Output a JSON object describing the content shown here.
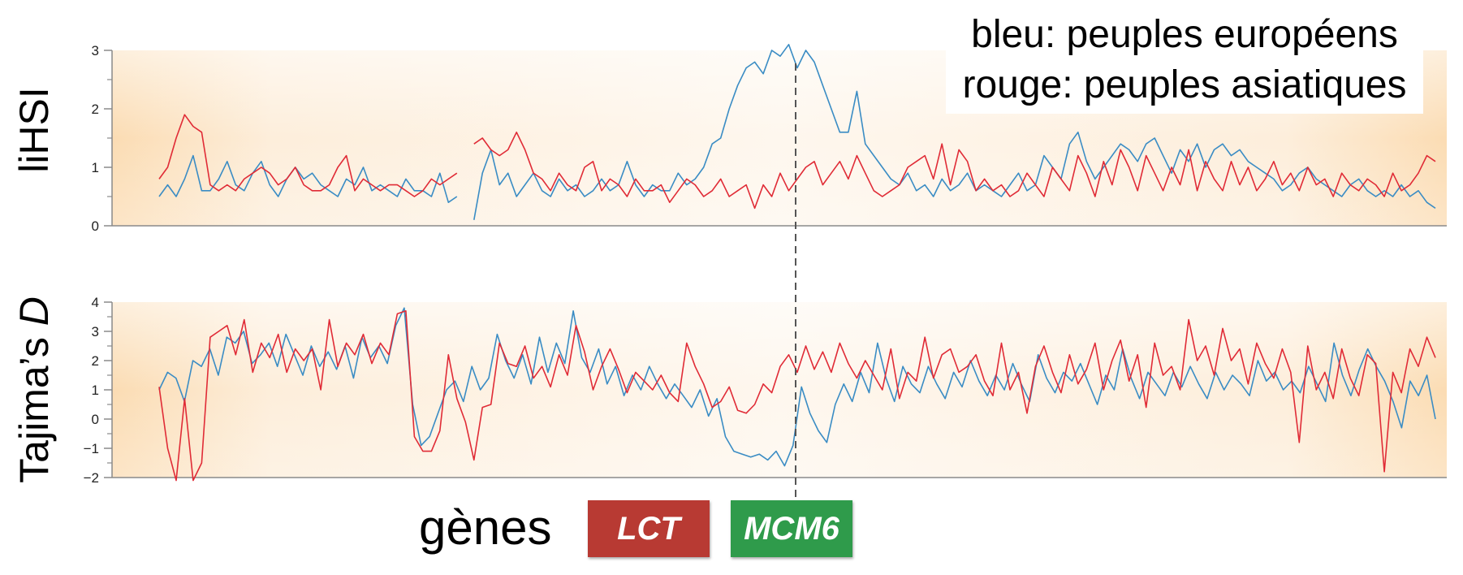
{
  "legend": {
    "line1": "bleu: peuples européens",
    "line2": "rouge: peuples asiatiques"
  },
  "colors": {
    "blue": "#3a8cc4",
    "red": "#e02b36",
    "lct": "#b83a33",
    "mcm6": "#2f9b4b"
  },
  "genes": {
    "label": "gènes",
    "lct": "LCT",
    "mcm6": "MCM6"
  },
  "chart_data": [
    {
      "type": "line",
      "ylabel": "liHSI",
      "ylim": [
        0,
        3
      ],
      "yticks": [
        "0",
        "1",
        "2",
        "3"
      ],
      "grid": false,
      "series": [
        {
          "name": "bleu: peuples européens",
          "color": "#3a8cc4",
          "values": [
            0.5,
            0.7,
            0.5,
            0.8,
            1.2,
            0.6,
            0.6,
            0.8,
            1.1,
            0.7,
            0.6,
            0.9,
            1.1,
            0.7,
            0.5,
            0.8,
            1.0,
            0.8,
            0.9,
            0.7,
            0.6,
            0.5,
            0.8,
            0.7,
            1.0,
            0.6,
            0.7,
            0.6,
            0.5,
            0.8,
            0.6,
            0.6,
            0.5,
            0.9,
            0.4,
            0.5,
            null,
            0.1,
            0.9,
            1.3,
            0.7,
            0.9,
            0.5,
            0.7,
            0.9,
            0.6,
            0.5,
            0.8,
            0.6,
            0.7,
            0.5,
            0.6,
            0.8,
            0.6,
            0.7,
            1.1,
            0.7,
            0.5,
            0.7,
            0.6,
            0.6,
            0.9,
            0.7,
            0.8,
            1.0,
            1.4,
            1.5,
            2.0,
            2.4,
            2.7,
            2.8,
            2.6,
            3.0,
            2.9,
            3.1,
            2.7,
            3.0,
            2.8,
            2.4,
            2.0,
            1.6,
            1.6,
            2.3,
            1.4,
            1.2,
            1.0,
            0.8,
            0.7,
            0.9,
            0.6,
            0.7,
            0.5,
            0.8,
            0.6,
            0.7,
            0.9,
            0.6,
            0.7,
            0.6,
            0.5,
            0.7,
            0.9,
            0.6,
            0.7,
            1.2,
            1.0,
            0.8,
            1.4,
            1.6,
            1.1,
            0.8,
            1.0,
            1.2,
            1.4,
            1.3,
            1.1,
            1.4,
            1.5,
            1.2,
            0.9,
            1.3,
            1.1,
            1.4,
            1.0,
            1.3,
            1.4,
            1.2,
            1.3,
            1.1,
            1.0,
            0.9,
            0.8,
            0.6,
            0.7,
            0.9,
            1.0,
            0.8,
            0.7,
            0.6,
            0.5,
            0.7,
            0.8,
            0.6,
            0.5,
            0.6,
            0.5,
            0.7,
            0.5,
            0.6,
            0.4,
            0.3
          ]
        },
        {
          "name": "rouge: peuples asiatiques",
          "color": "#e02b36",
          "values": [
            0.8,
            1.0,
            1.5,
            1.9,
            1.7,
            1.6,
            0.7,
            0.6,
            0.7,
            0.6,
            0.8,
            0.9,
            1.0,
            0.9,
            0.7,
            0.8,
            1.0,
            0.7,
            0.6,
            0.6,
            0.7,
            1.0,
            1.2,
            0.6,
            0.8,
            0.7,
            0.6,
            0.7,
            0.7,
            0.6,
            0.5,
            0.6,
            0.8,
            0.7,
            0.8,
            0.9,
            null,
            1.4,
            1.5,
            1.3,
            1.2,
            1.3,
            1.6,
            1.3,
            0.9,
            0.8,
            0.6,
            0.9,
            0.7,
            0.6,
            1.0,
            1.1,
            0.6,
            0.8,
            0.7,
            0.5,
            0.8,
            0.6,
            0.6,
            0.7,
            0.4,
            0.6,
            0.8,
            0.7,
            0.5,
            0.6,
            0.8,
            0.5,
            0.6,
            0.7,
            0.3,
            0.7,
            0.5,
            0.9,
            0.6,
            0.8,
            1.0,
            1.1,
            0.7,
            0.9,
            1.1,
            0.8,
            1.2,
            0.9,
            0.6,
            0.5,
            0.6,
            0.7,
            1.0,
            1.1,
            1.2,
            0.8,
            1.4,
            0.7,
            1.3,
            1.1,
            0.6,
            0.8,
            0.6,
            0.7,
            0.5,
            0.6,
            0.9,
            0.7,
            0.5,
            1.0,
            0.8,
            0.6,
            1.2,
            0.9,
            0.5,
            1.1,
            0.7,
            1.3,
            1.0,
            0.6,
            1.2,
            0.9,
            0.6,
            1.0,
            0.7,
            1.3,
            0.6,
            1.1,
            0.8,
            0.6,
            1.1,
            0.7,
            1.0,
            0.6,
            0.8,
            1.1,
            0.7,
            0.9,
            0.6,
            1.0,
            0.7,
            0.8,
            0.5,
            0.9,
            0.7,
            0.6,
            0.8,
            0.7,
            0.5,
            0.9,
            0.6,
            0.7,
            0.9,
            1.2,
            1.1
          ]
        }
      ]
    },
    {
      "type": "line",
      "ylabel": "Tajima’s D",
      "ylim": [
        -2,
        4
      ],
      "yticks": [
        "−2",
        "−1",
        "0",
        "1",
        "2",
        "3",
        "4"
      ],
      "grid": false,
      "series": [
        {
          "name": "bleu: peuples européens",
          "color": "#3a8cc4",
          "values": [
            1.0,
            1.6,
            1.4,
            0.6,
            2.0,
            1.8,
            2.4,
            1.5,
            2.8,
            2.6,
            3.0,
            1.9,
            2.2,
            2.6,
            1.8,
            2.9,
            2.2,
            1.5,
            2.5,
            1.8,
            2.3,
            1.7,
            2.5,
            1.4,
            2.8,
            2.1,
            2.5,
            1.9,
            3.2,
            3.8,
            0.5,
            -0.9,
            -0.6,
            0.2,
            1.0,
            1.3,
            0.6,
            1.8,
            1.0,
            1.4,
            2.9,
            2.0,
            1.4,
            2.2,
            1.2,
            2.8,
            1.6,
            2.6,
            1.9,
            3.7,
            2.1,
            1.6,
            2.4,
            1.2,
            1.8,
            0.8,
            1.5,
            1.0,
            1.8,
            1.2,
            0.7,
            1.2,
            0.8,
            0.4,
            1.0,
            0.1,
            0.7,
            -0.6,
            -1.1,
            -1.2,
            -1.3,
            -1.2,
            -1.4,
            -1.1,
            -1.6,
            -0.9,
            1.1,
            0.2,
            -0.4,
            -0.8,
            0.5,
            1.2,
            0.6,
            1.6,
            0.9,
            2.6,
            1.4,
            0.6,
            1.8,
            1.2,
            0.9,
            1.8,
            1.2,
            0.7,
            1.6,
            1.1,
            2.0,
            1.3,
            0.8,
            1.5,
            1.0,
            1.9,
            1.2,
            0.6,
            2.2,
            1.4,
            0.9,
            1.6,
            1.3,
            1.9,
            1.2,
            0.5,
            1.5,
            1.0,
            2.4,
            1.4,
            0.7,
            1.6,
            1.2,
            0.8,
            1.6,
            1.1,
            1.8,
            1.2,
            0.7,
            1.6,
            1.0,
            1.5,
            1.2,
            0.8,
            2.0,
            1.3,
            1.6,
            1.0,
            1.3,
            0.9,
            1.8,
            1.2,
            0.6,
            2.6,
            1.5,
            0.8,
            1.7,
            2.4,
            1.8,
            1.3,
            0.6,
            -0.3,
            1.3,
            0.8,
            1.5,
            0.0
          ]
        },
        {
          "name": "rouge: peuples asiatiques",
          "color": "#e02b36",
          "values": [
            1.1,
            -1.0,
            -2.1,
            0.7,
            -2.1,
            -1.5,
            2.8,
            3.0,
            3.2,
            2.2,
            3.4,
            1.6,
            2.6,
            2.1,
            2.9,
            1.6,
            2.4,
            2.0,
            2.4,
            1.0,
            3.4,
            1.8,
            2.6,
            2.2,
            2.9,
            1.9,
            2.6,
            2.2,
            3.6,
            3.7,
            -0.6,
            -1.1,
            -1.1,
            -0.4,
            2.2,
            0.7,
            -0.1,
            -1.4,
            0.4,
            0.5,
            2.6,
            1.9,
            1.8,
            2.5,
            1.4,
            1.8,
            1.1,
            2.2,
            1.5,
            3.2,
            2.3,
            1.0,
            1.8,
            2.4,
            1.7,
            0.9,
            1.6,
            1.3,
            1.0,
            1.5,
            0.9,
            0.6,
            2.6,
            1.8,
            1.2,
            0.4,
            0.6,
            1.1,
            0.3,
            0.2,
            0.5,
            1.2,
            0.9,
            1.8,
            2.2,
            1.6,
            2.5,
            1.7,
            2.3,
            1.6,
            2.6,
            1.9,
            1.4,
            2.0,
            1.5,
            1.0,
            2.4,
            0.7,
            1.6,
            1.3,
            2.8,
            1.4,
            2.2,
            2.4,
            1.6,
            1.8,
            2.2,
            1.3,
            0.8,
            2.6,
            1.0,
            1.6,
            0.2,
            1.8,
            2.5,
            1.6,
            0.9,
            2.2,
            1.2,
            1.7,
            2.6,
            1.0,
            2.0,
            2.7,
            1.3,
            2.2,
            0.4,
            2.6,
            1.5,
            1.8,
            1.0,
            3.4,
            2.0,
            2.5,
            1.5,
            3.1,
            2.0,
            2.4,
            1.2,
            2.6,
            1.9,
            1.4,
            2.4,
            1.6,
            -0.8,
            2.5,
            1.0,
            1.6,
            0.7,
            2.4,
            1.4,
            0.8,
            2.2,
            1.9,
            -1.8,
            1.6,
            0.9,
            2.4,
            1.8,
            2.8,
            2.1
          ]
        }
      ]
    }
  ]
}
